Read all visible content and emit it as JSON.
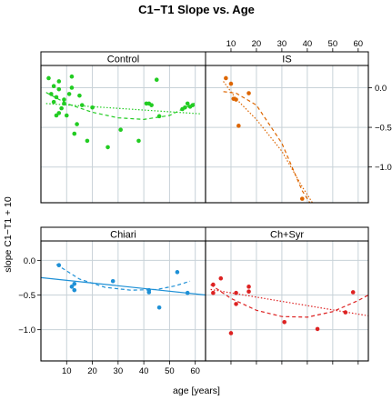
{
  "chart_data": {
    "type": "scatter",
    "title": "C1−T1 Slope vs. Age",
    "xlabel": "age [years]",
    "ylabel": "slope C1−T1 + 10",
    "xlim": [
      0,
      64
    ],
    "xticks": [
      10,
      20,
      30,
      40,
      50,
      60
    ],
    "ylim": [
      -1.45,
      0.28
    ],
    "yticks": [
      0.0,
      -0.5,
      -1.0
    ],
    "ytick_labels": [
      "0.0",
      "−0.5",
      "−1.0"
    ],
    "grid": true,
    "panels": [
      {
        "name": "Control",
        "color": "#22cc22",
        "points": [
          {
            "x": 3,
            "y": 0.12
          },
          {
            "x": 4,
            "y": -0.08
          },
          {
            "x": 5,
            "y": 0.02
          },
          {
            "x": 5,
            "y": -0.18
          },
          {
            "x": 6,
            "y": -0.35
          },
          {
            "x": 6,
            "y": -0.12
          },
          {
            "x": 7,
            "y": -0.02
          },
          {
            "x": 7,
            "y": 0.08
          },
          {
            "x": 7,
            "y": -0.32
          },
          {
            "x": 8,
            "y": -0.26
          },
          {
            "x": 9,
            "y": -0.2
          },
          {
            "x": 9,
            "y": -0.15
          },
          {
            "x": 10,
            "y": -0.35
          },
          {
            "x": 11,
            "y": -0.08
          },
          {
            "x": 12,
            "y": 0.14
          },
          {
            "x": 12,
            "y": 0.0
          },
          {
            "x": 13,
            "y": -0.58
          },
          {
            "x": 14,
            "y": -0.46
          },
          {
            "x": 15,
            "y": -0.1
          },
          {
            "x": 16,
            "y": -0.22
          },
          {
            "x": 18,
            "y": -0.67
          },
          {
            "x": 20,
            "y": -0.25
          },
          {
            "x": 26,
            "y": -0.75
          },
          {
            "x": 31,
            "y": -0.53
          },
          {
            "x": 38,
            "y": -0.67
          },
          {
            "x": 41,
            "y": -0.2
          },
          {
            "x": 42,
            "y": -0.2
          },
          {
            "x": 43,
            "y": -0.22
          },
          {
            "x": 45,
            "y": 0.1
          },
          {
            "x": 46,
            "y": -0.36
          },
          {
            "x": 55,
            "y": -0.27
          },
          {
            "x": 56,
            "y": -0.25
          },
          {
            "x": 57,
            "y": -0.2
          },
          {
            "x": 58,
            "y": -0.24
          },
          {
            "x": 59,
            "y": -0.22
          }
        ],
        "fit_linear": [
          {
            "x": 2,
            "y": -0.2
          },
          {
            "x": 62,
            "y": -0.33
          }
        ],
        "fit_quadratic": [
          {
            "x": 2,
            "y": -0.06
          },
          {
            "x": 10,
            "y": -0.2
          },
          {
            "x": 20,
            "y": -0.31
          },
          {
            "x": 30,
            "y": -0.38
          },
          {
            "x": 40,
            "y": -0.4
          },
          {
            "x": 50,
            "y": -0.35
          },
          {
            "x": 60,
            "y": -0.19
          }
        ]
      },
      {
        "name": "IS",
        "color": "#dd6600",
        "points": [
          {
            "x": 8,
            "y": 0.12
          },
          {
            "x": 10,
            "y": 0.05
          },
          {
            "x": 11,
            "y": -0.14
          },
          {
            "x": 12,
            "y": -0.15
          },
          {
            "x": 13,
            "y": -0.48
          },
          {
            "x": 17,
            "y": -0.07
          },
          {
            "x": 38,
            "y": -1.4
          }
        ],
        "fit_linear": [
          {
            "x": 7,
            "y": 0.08
          },
          {
            "x": 12,
            "y": -0.14
          },
          {
            "x": 20,
            "y": -0.4
          },
          {
            "x": 30,
            "y": -0.8
          },
          {
            "x": 38,
            "y": -1.25
          },
          {
            "x": 42,
            "y": -1.45
          }
        ],
        "fit_quadratic": [
          {
            "x": 7,
            "y": -0.05
          },
          {
            "x": 12,
            "y": -0.07
          },
          {
            "x": 20,
            "y": -0.22
          },
          {
            "x": 30,
            "y": -0.7
          },
          {
            "x": 38,
            "y": -1.3
          },
          {
            "x": 41,
            "y": -1.45
          }
        ]
      },
      {
        "name": "Chiari",
        "color": "#1e90d6",
        "points": [
          {
            "x": 7,
            "y": -0.07
          },
          {
            "x": 12,
            "y": -0.38
          },
          {
            "x": 13,
            "y": -0.43
          },
          {
            "x": 13,
            "y": -0.34
          },
          {
            "x": 28,
            "y": -0.3
          },
          {
            "x": 42,
            "y": -0.46
          },
          {
            "x": 42,
            "y": -0.43
          },
          {
            "x": 46,
            "y": -0.68
          },
          {
            "x": 53,
            "y": -0.17
          },
          {
            "x": 57,
            "y": -0.47
          }
        ],
        "fit_linear": [
          {
            "x": 0,
            "y": -0.25
          },
          {
            "x": 64,
            "y": -0.5
          }
        ],
        "fit_quadratic": [
          {
            "x": 6,
            "y": -0.06
          },
          {
            "x": 15,
            "y": -0.27
          },
          {
            "x": 25,
            "y": -0.39
          },
          {
            "x": 35,
            "y": -0.43
          },
          {
            "x": 45,
            "y": -0.42
          },
          {
            "x": 52,
            "y": -0.37
          },
          {
            "x": 58,
            "y": -0.3
          }
        ]
      },
      {
        "name": "Ch+Syr",
        "color": "#dd2222",
        "points": [
          {
            "x": 3,
            "y": -0.35
          },
          {
            "x": 3,
            "y": -0.47
          },
          {
            "x": 6,
            "y": -0.26
          },
          {
            "x": 10,
            "y": -1.05
          },
          {
            "x": 12,
            "y": -0.47
          },
          {
            "x": 12,
            "y": -0.63
          },
          {
            "x": 17,
            "y": -0.38
          },
          {
            "x": 17,
            "y": -0.45
          },
          {
            "x": 31,
            "y": -0.89
          },
          {
            "x": 44,
            "y": -0.99
          },
          {
            "x": 55,
            "y": -0.75
          },
          {
            "x": 58,
            "y": -0.46
          }
        ],
        "fit_linear": [
          {
            "x": 2,
            "y": -0.42
          },
          {
            "x": 64,
            "y": -0.8
          }
        ],
        "fit_quadratic": [
          {
            "x": 2,
            "y": -0.35
          },
          {
            "x": 10,
            "y": -0.55
          },
          {
            "x": 20,
            "y": -0.72
          },
          {
            "x": 30,
            "y": -0.81
          },
          {
            "x": 40,
            "y": -0.82
          },
          {
            "x": 50,
            "y": -0.74
          },
          {
            "x": 60,
            "y": -0.58
          },
          {
            "x": 64,
            "y": -0.5
          }
        ]
      }
    ]
  }
}
